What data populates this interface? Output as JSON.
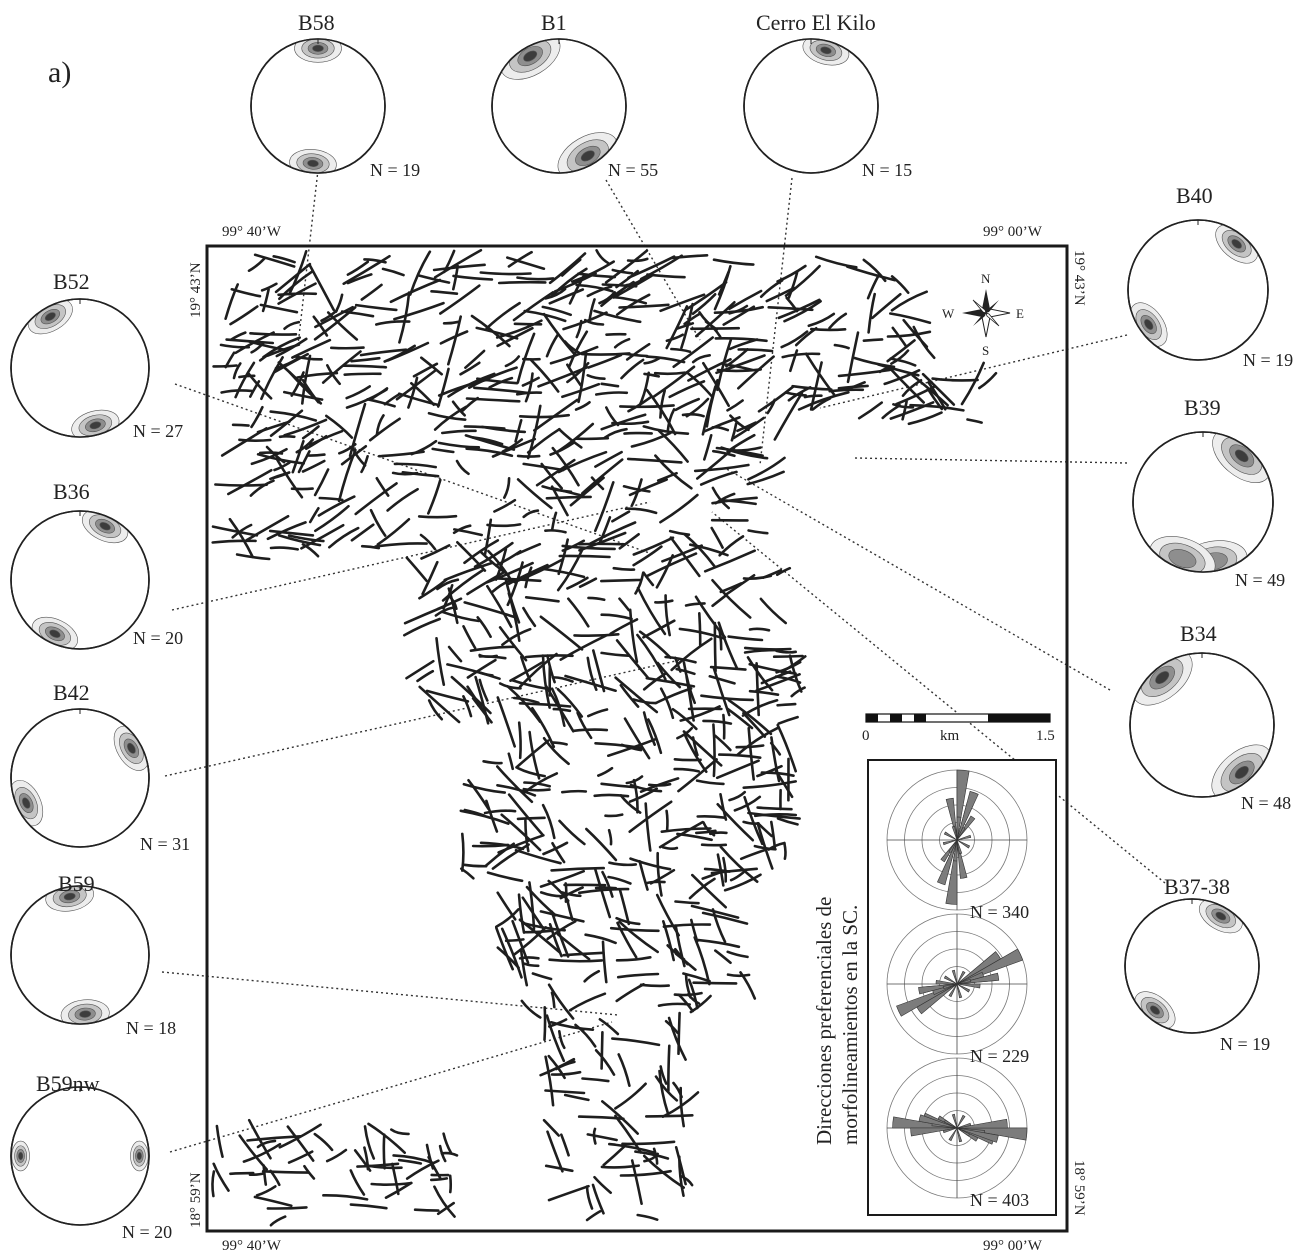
{
  "panel_label": "a)",
  "map": {
    "coords": {
      "top_left": "99° 40’W",
      "top_right": "99° 00’W",
      "bottom_left": "99° 40’W",
      "bottom_right": "99° 00’W",
      "left_top": "19° 43’N",
      "left_bottom": "18° 59’N",
      "right_top": "19° 43’N",
      "right_bottom": "18° 59’N"
    },
    "compass": {
      "n": "N",
      "s": "S",
      "e": "E",
      "w": "W"
    },
    "scale": {
      "start": "0",
      "unit": "km",
      "end": "1.5"
    }
  },
  "stereonets": [
    {
      "id": "B58",
      "n_label": "N = 19",
      "peaks_deg": [
        0,
        185
      ],
      "spread": "moderate"
    },
    {
      "id": "B1",
      "n_label": "N = 55",
      "peaks_deg": [
        330,
        150
      ],
      "spread": "broad"
    },
    {
      "id": "Cerro El Kilo",
      "n_label": "N = 15",
      "peaks_deg": [
        15
      ],
      "spread": "moderate"
    },
    {
      "id": "B40",
      "n_label": "N = 19",
      "peaks_deg": [
        40,
        235
      ],
      "spread": "moderate"
    },
    {
      "id": "B39",
      "n_label": "N = 49",
      "peaks_deg": [
        40,
        170,
        200
      ],
      "spread": "broad"
    },
    {
      "id": "B34",
      "n_label": "N = 48",
      "peaks_deg": [
        320,
        140
      ],
      "spread": "broad"
    },
    {
      "id": "B37-38",
      "n_label": "N = 19",
      "peaks_deg": [
        30,
        220
      ],
      "spread": "moderate"
    },
    {
      "id": "B52",
      "n_label": "N = 27",
      "peaks_deg": [
        330,
        165
      ],
      "spread": "moderate"
    },
    {
      "id": "B36",
      "n_label": "N = 20",
      "peaks_deg": [
        25,
        205
      ],
      "spread": "moderate"
    },
    {
      "id": "B42",
      "n_label": "N = 31",
      "peaks_deg": [
        245,
        60
      ],
      "spread": "moderate"
    },
    {
      "id": "B59",
      "n_label": "N = 18",
      "peaks_deg": [
        350,
        175
      ],
      "spread": "moderate"
    },
    {
      "id": "B59nw",
      "n_label": "N = 20",
      "peaks_deg": [
        270,
        90
      ],
      "spread": "narrow"
    }
  ],
  "rose_panel": {
    "title_line1": "Direcciones preferenciales de",
    "title_line2": "morfolineamientos en la SC.",
    "roses": [
      {
        "n_label": "N = 340",
        "dominant_azimuths_deg": [
          5,
          20,
          350
        ]
      },
      {
        "n_label": "N = 229",
        "dominant_azimuths_deg": [
          65,
          55,
          80
        ]
      },
      {
        "n_label": "N = 403",
        "dominant_azimuths_deg": [
          95,
          85,
          105
        ]
      }
    ]
  },
  "lineament_strike_families_deg": [
    20,
    60,
    95,
    140,
    170
  ]
}
